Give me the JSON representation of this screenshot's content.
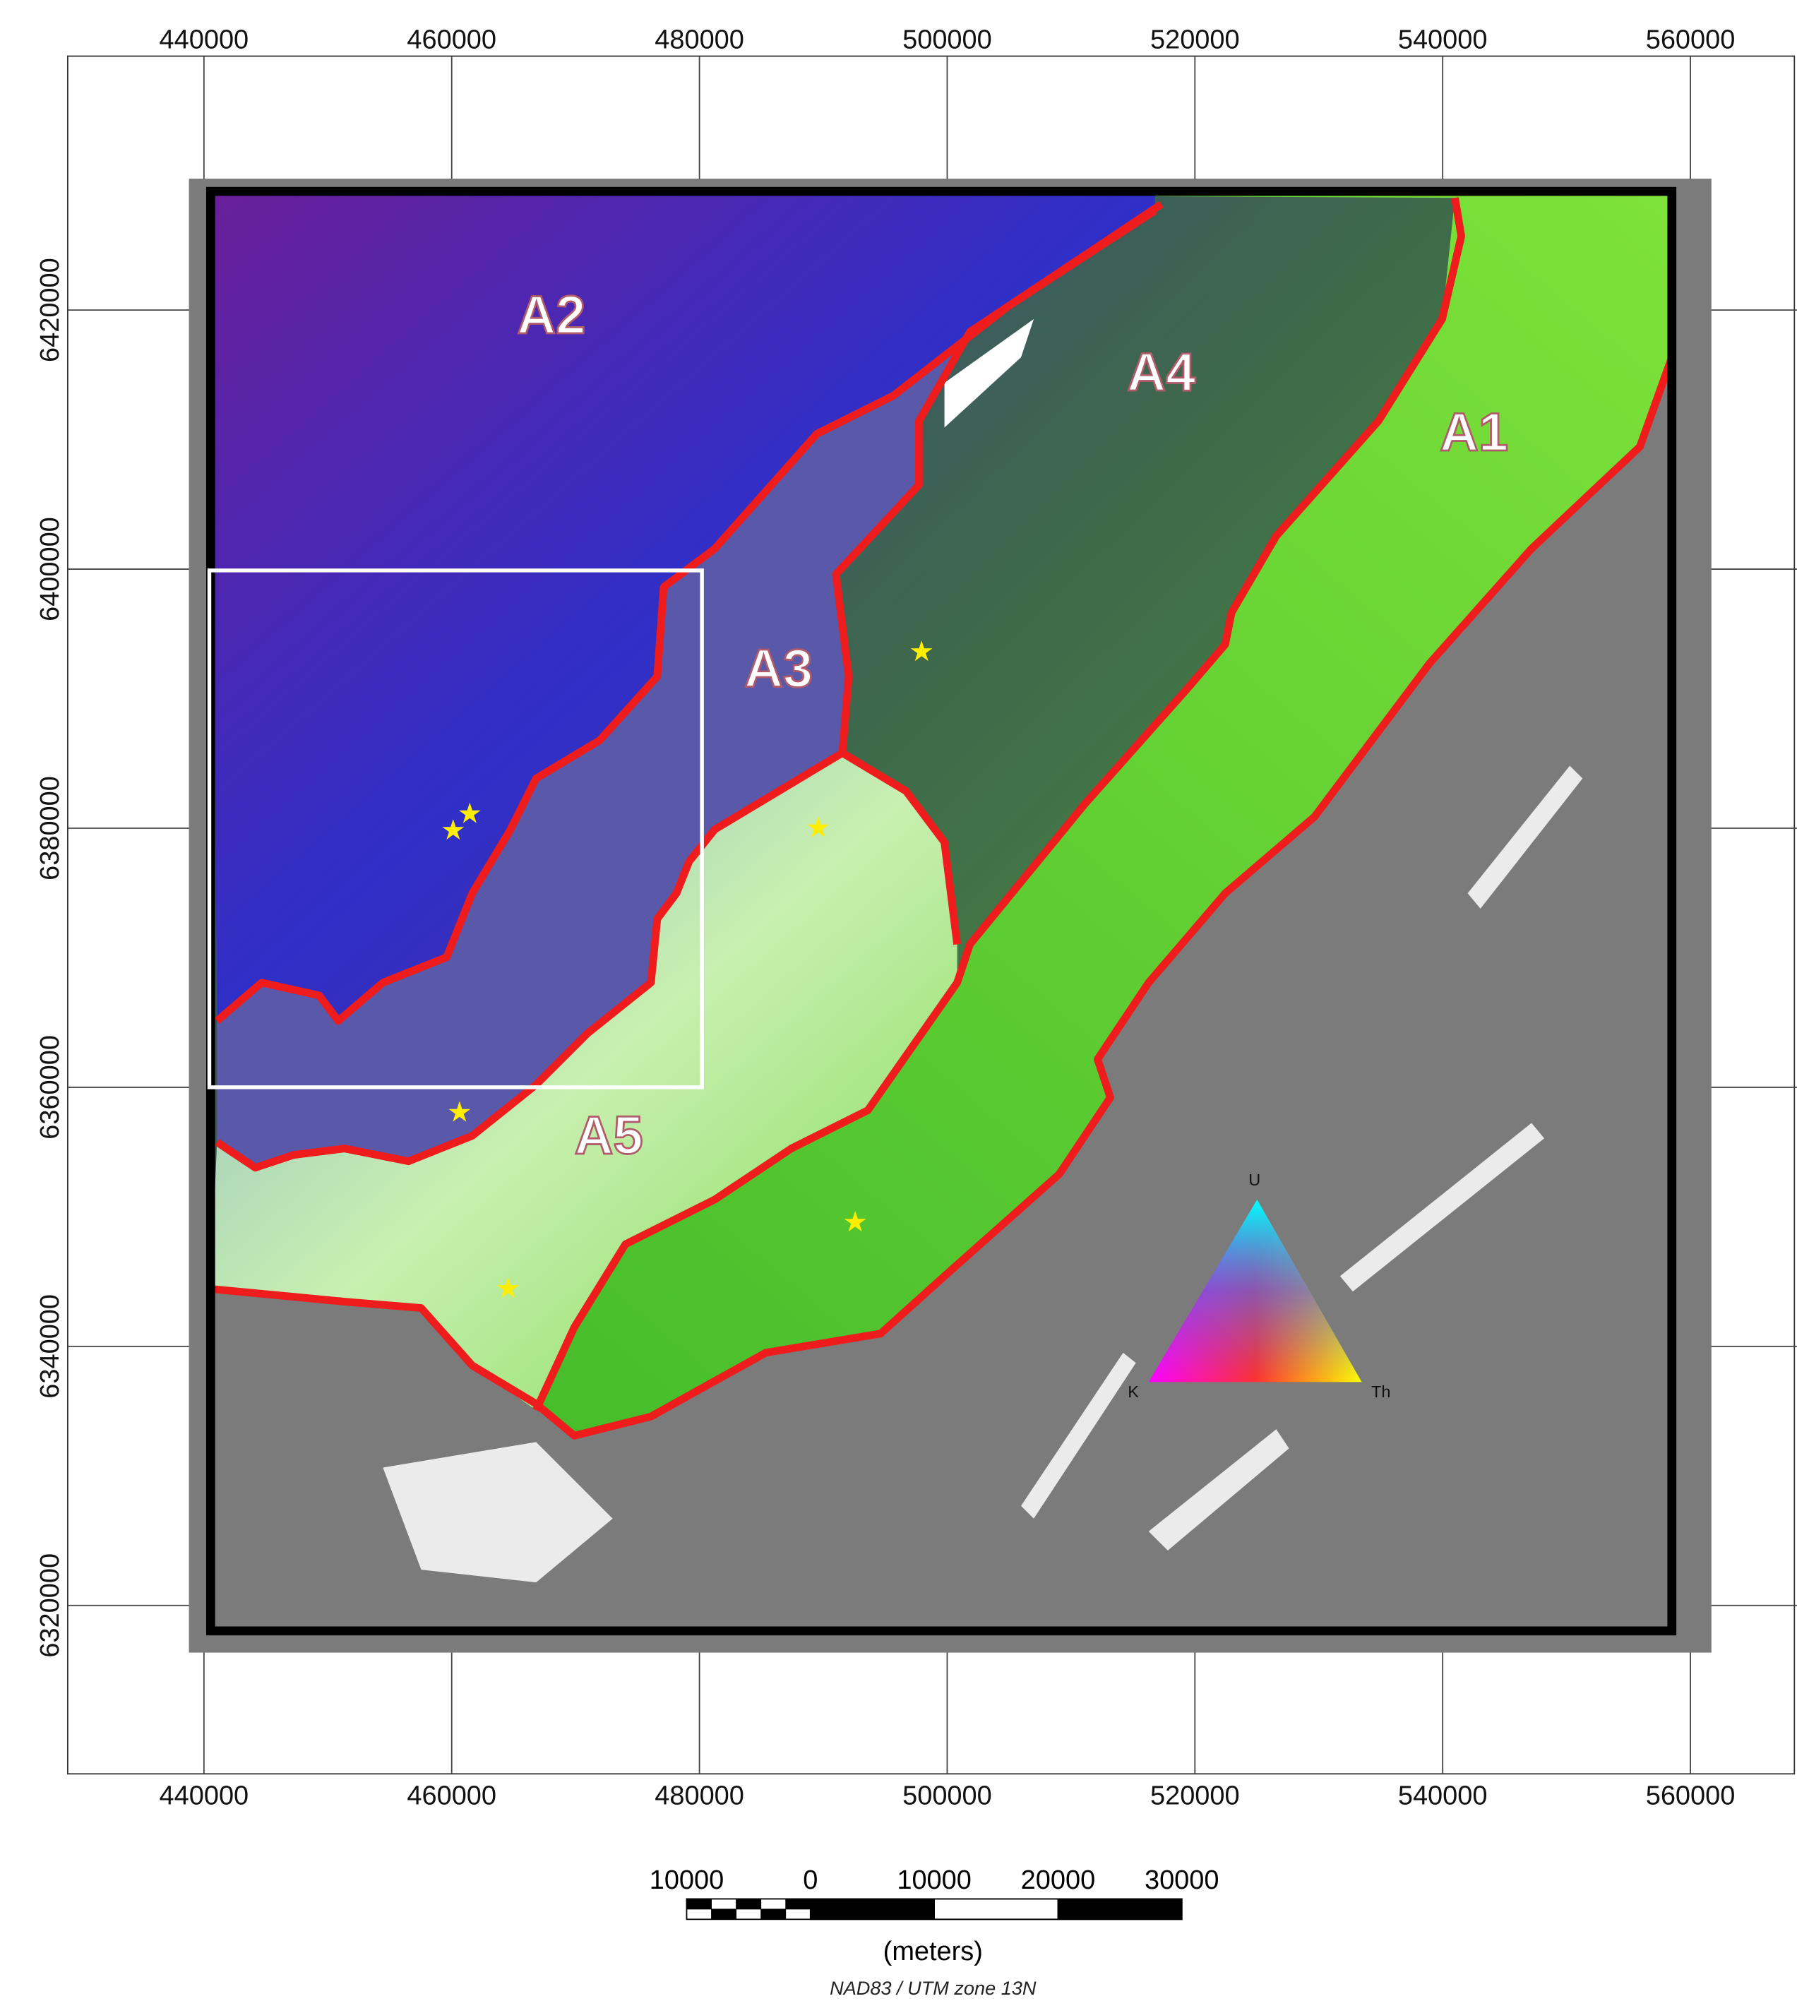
{
  "map": {
    "xlim": [
      429000,
      568600
    ],
    "ylim": [
      6307000,
      6439600
    ],
    "xticks": [
      440000,
      460000,
      480000,
      500000,
      520000,
      540000,
      560000
    ],
    "yticks": [
      6320000,
      6340000,
      6360000,
      6380000,
      6400000,
      6420000
    ],
    "regions": [
      "A2",
      "A4",
      "A1",
      "A3",
      "A5"
    ],
    "legend": {
      "labels": [
        "U",
        "K",
        "Th"
      ]
    },
    "scale_bar": {
      "labels": [
        10000,
        0,
        10000,
        20000,
        30000
      ],
      "unit": "(meters)"
    },
    "projection": "NAD83 / UTM zone 13N"
  }
}
